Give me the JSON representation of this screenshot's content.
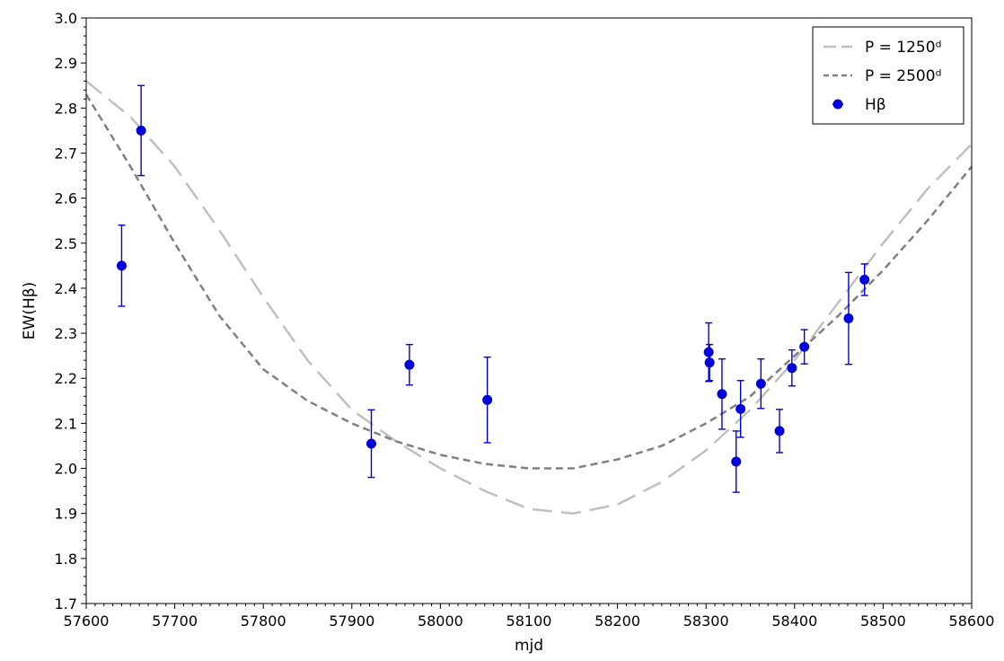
{
  "chart_data": {
    "type": "scatter",
    "title": "",
    "xlabel": "mjd",
    "ylabel": "EW(Hβ)",
    "xlim": [
      57600,
      58600
    ],
    "ylim": [
      1.7,
      3.0
    ],
    "x_ticks": [
      57600,
      57700,
      57800,
      57900,
      58000,
      58100,
      58200,
      58300,
      58400,
      58500,
      58600
    ],
    "y_ticks": [
      1.7,
      1.8,
      1.9,
      2.0,
      2.1,
      2.2,
      2.3,
      2.4,
      2.5,
      2.6,
      2.7,
      2.8,
      2.9,
      3.0
    ],
    "x_tick_labels": [
      "57600",
      "57700",
      "57800",
      "57900",
      "58000",
      "58100",
      "58200",
      "58300",
      "58400",
      "58500",
      "58600"
    ],
    "y_tick_labels": [
      "1.7",
      "1.8",
      "1.9",
      "2.0",
      "2.1",
      "2.2",
      "2.3",
      "2.4",
      "2.5",
      "2.6",
      "2.7",
      "2.8",
      "2.9",
      "3.0"
    ],
    "grid": false,
    "legend_position": "top-right",
    "series": [
      {
        "name": "P = 1250ᵈ",
        "kind": "line",
        "style": "long-dash",
        "color": "#c0c0c0",
        "x": [
          57600,
          57650,
          57700,
          57750,
          57800,
          57850,
          57900,
          57950,
          58000,
          58050,
          58100,
          58150,
          58200,
          58250,
          58300,
          58350,
          58400,
          58450,
          58500,
          58550,
          58600
        ],
        "y": [
          2.86,
          2.78,
          2.67,
          2.53,
          2.38,
          2.24,
          2.13,
          2.06,
          2.0,
          1.95,
          1.91,
          1.9,
          1.92,
          1.97,
          2.04,
          2.13,
          2.24,
          2.37,
          2.5,
          2.62,
          2.72
        ]
      },
      {
        "name": "P = 2500ᵈ",
        "kind": "line",
        "style": "short-dash",
        "color": "#808080",
        "x": [
          57600,
          57650,
          57700,
          57750,
          57800,
          57850,
          57900,
          57950,
          58000,
          58050,
          58100,
          58150,
          58200,
          58250,
          58300,
          58350,
          58400,
          58450,
          58500,
          58550,
          58600
        ],
        "y": [
          2.83,
          2.67,
          2.5,
          2.34,
          2.22,
          2.15,
          2.1,
          2.06,
          2.03,
          2.01,
          2.0,
          2.0,
          2.02,
          2.05,
          2.1,
          2.16,
          2.25,
          2.34,
          2.44,
          2.55,
          2.67
        ]
      },
      {
        "name": "Hβ",
        "kind": "errorbar",
        "color": "#0000dd",
        "x": [
          57640,
          57662,
          57922,
          57965,
          58053,
          58303,
          58304,
          58318,
          58334,
          58339,
          58362,
          58383,
          58397,
          58411,
          58461,
          58479
        ],
        "y": [
          2.45,
          2.75,
          2.055,
          2.23,
          2.152,
          2.258,
          2.235,
          2.165,
          2.015,
          2.132,
          2.188,
          2.083,
          2.223,
          2.27,
          2.333,
          2.419
        ],
        "err": [
          0.09,
          0.1,
          0.075,
          0.045,
          0.095,
          0.065,
          0.04,
          0.078,
          0.068,
          0.063,
          0.055,
          0.048,
          0.04,
          0.038,
          0.102,
          0.035
        ]
      }
    ]
  }
}
